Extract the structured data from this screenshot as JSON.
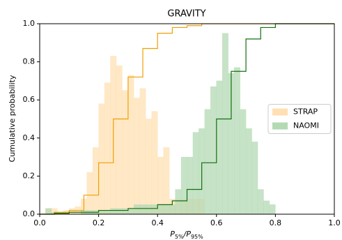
{
  "chart_data": {
    "type": "histogram",
    "title": "GRAVITY",
    "x_label_parts": [
      "P",
      "5%",
      "/P",
      "95%"
    ],
    "y_label": "Cumulative probability",
    "bins": [
      0,
      0.02,
      0.04,
      0.06,
      0.08,
      0.1,
      0.12,
      0.14,
      0.16,
      0.18,
      0.2,
      0.22,
      0.24,
      0.26,
      0.28,
      0.3,
      0.32,
      0.34,
      0.36,
      0.38,
      0.4,
      0.42,
      0.44,
      0.46,
      0.48,
      0.5,
      0.52,
      0.54,
      0.56,
      0.58,
      0.6,
      0.62,
      0.64,
      0.66,
      0.68,
      0.7,
      0.72,
      0.74,
      0.76,
      0.78,
      0.8
    ],
    "series": [
      {
        "name": "STRAP",
        "color": "#ffe0b3",
        "values": [
          0,
          0.03,
          0.03,
          0.01,
          0.02,
          0.03,
          0.04,
          0.08,
          0.22,
          0.35,
          0.58,
          0.69,
          0.83,
          0.78,
          0.65,
          0.73,
          0.61,
          0.66,
          0.5,
          0.54,
          0.3,
          0.35,
          0.08,
          0.08,
          0.08,
          0.08,
          0.08,
          0.08,
          0,
          0,
          0,
          0,
          0,
          0,
          0,
          0,
          0,
          0,
          0,
          0
        ]
      },
      {
        "name": "NAOMI",
        "color": "#b4dab4",
        "values": [
          0,
          0.03,
          0.01,
          0,
          0,
          0,
          0,
          0.02,
          0.02,
          0.02,
          0.02,
          0.02,
          0.03,
          0.03,
          0.03,
          0.03,
          0.05,
          0.05,
          0.05,
          0.05,
          0.05,
          0.05,
          0.05,
          0.13,
          0.3,
          0.3,
          0.43,
          0.45,
          0.55,
          0.67,
          0.7,
          0.95,
          0.74,
          0.77,
          0.55,
          0.45,
          0.38,
          0.13,
          0.07,
          0.05
        ]
      }
    ],
    "step_lines": [
      {
        "color": "#f0a000",
        "x": [
          0,
          0.05,
          0.1,
          0.15,
          0.2,
          0.25,
          0.3,
          0.35,
          0.4,
          0.45,
          0.5,
          0.55,
          1.0
        ],
        "values": [
          0,
          0.01,
          0.02,
          0.1,
          0.27,
          0.5,
          0.72,
          0.87,
          0.95,
          0.98,
          0.99,
          1.0,
          1.0
        ]
      },
      {
        "color": "#107010",
        "x": [
          0,
          0.05,
          0.1,
          0.2,
          0.3,
          0.4,
          0.45,
          0.5,
          0.55,
          0.6,
          0.65,
          0.7,
          0.75,
          0.8,
          1.0
        ],
        "values": [
          0,
          0.005,
          0.01,
          0.02,
          0.03,
          0.05,
          0.07,
          0.13,
          0.27,
          0.5,
          0.75,
          0.92,
          0.98,
          1.0,
          1.0
        ]
      }
    ],
    "xlim": [
      0,
      1
    ],
    "ylim": [
      0,
      1
    ],
    "xticks": [
      {
        "value": 0,
        "label": "0.0"
      },
      {
        "value": 0.2,
        "label": "0.2"
      },
      {
        "value": 0.4,
        "label": "0.4"
      },
      {
        "value": 0.6,
        "label": "0.6"
      },
      {
        "value": 0.8,
        "label": "0.8"
      },
      {
        "value": 1,
        "label": "1.0"
      }
    ],
    "yticks": [
      {
        "value": 0,
        "label": "0.0"
      },
      {
        "value": 0.2,
        "label": "0.2"
      },
      {
        "value": 0.4,
        "label": "0.4"
      },
      {
        "value": 0.6,
        "label": "0.6"
      },
      {
        "value": 0.8,
        "label": "0.8"
      },
      {
        "value": 1,
        "label": "1.0"
      }
    ],
    "legend": "center right"
  }
}
